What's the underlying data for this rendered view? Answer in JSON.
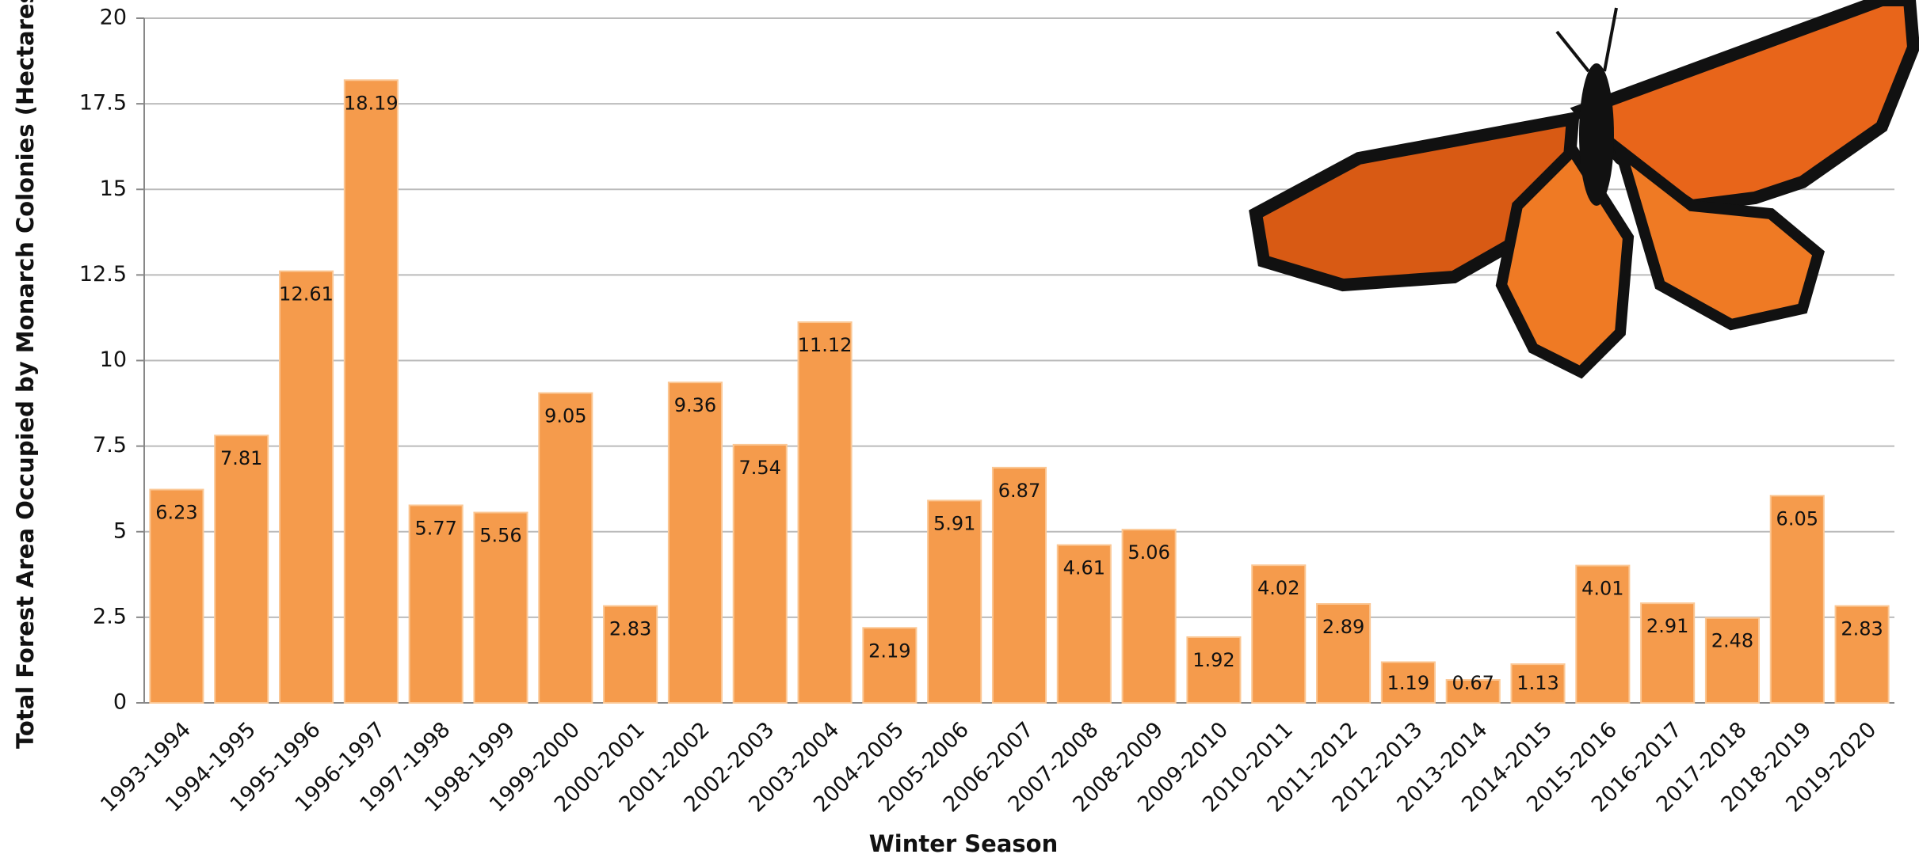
{
  "chart_data": {
    "type": "bar",
    "x_label": "Winter Season",
    "y_label": "Total Forest Area Occupied by Monarch Colonies (Hectares)",
    "categories": [
      "1993-1994",
      "1994-1995",
      "1995-1996",
      "1996-1997",
      "1997-1998",
      "1998-1999",
      "1999-2000",
      "2000-2001",
      "2001-2002",
      "2002-2003",
      "2003-2004",
      "2004-2005",
      "2005-2006",
      "2006-2007",
      "2007-2008",
      "2008-2009",
      "2009-2010",
      "2010-2011",
      "2011-2012",
      "2012-2013",
      "2013-2014",
      "2014-2015",
      "2015-2016",
      "2016-2017",
      "2017-2018",
      "2018-2019",
      "2019-2020"
    ],
    "values": [
      6.23,
      7.81,
      12.61,
      18.19,
      5.77,
      5.56,
      9.05,
      2.83,
      9.36,
      7.54,
      11.12,
      2.19,
      5.91,
      6.87,
      4.61,
      5.06,
      1.92,
      4.02,
      2.89,
      1.19,
      0.67,
      1.13,
      4.01,
      2.91,
      2.48,
      6.05,
      2.83
    ],
    "color": "#f59b4c",
    "ylim": [
      0,
      20
    ],
    "yticks": [
      0,
      2.5,
      5,
      7.5,
      10,
      12.5,
      15,
      17.5,
      20
    ],
    "grid": true
  }
}
